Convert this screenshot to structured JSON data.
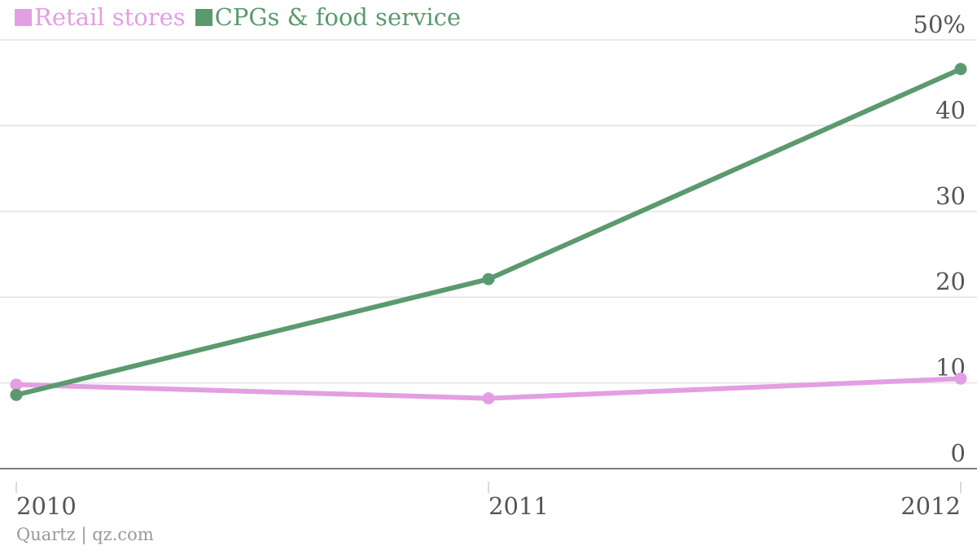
{
  "chart_data": {
    "type": "line",
    "x": [
      "2010",
      "2011",
      "2012"
    ],
    "series": [
      {
        "name": "Retail stores",
        "color": "#e39fe3",
        "values": [
          9.8,
          8.2,
          10.5
        ]
      },
      {
        "name": "CPGs & food service",
        "color": "#5b9a6e",
        "values": [
          8.6,
          22.1,
          46.6
        ]
      }
    ],
    "y_ticks": [
      "0",
      "10",
      "20",
      "30",
      "40",
      "50%"
    ],
    "ylim": [
      0,
      50
    ],
    "grid": true,
    "legend_position": "top-left",
    "title": "",
    "xlabel": "",
    "ylabel": ""
  },
  "footer": {
    "source": "Quartz | qz.com"
  }
}
